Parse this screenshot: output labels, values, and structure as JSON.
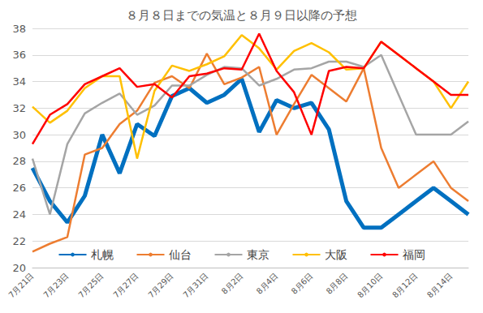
{
  "chart_data": {
    "type": "line",
    "title": "８月８日までの気温と８月９日以降の予想",
    "categories": [
      "7月21日",
      null,
      "7月23日",
      null,
      "7月25日",
      null,
      "7月27日",
      null,
      "7月29日",
      null,
      "7月31日",
      null,
      "8月2日",
      null,
      "8月4日",
      null,
      "8月6日",
      null,
      "8月8日",
      null,
      "8月10日",
      null,
      "8月12日",
      null,
      "8月14日",
      null
    ],
    "series": [
      {
        "name": "札幌",
        "color": "#0070C0",
        "line_style": "bold",
        "values": [
          27.5,
          25,
          23.4,
          25.4,
          30,
          27.1,
          30.8,
          29.9,
          32.9,
          33.5,
          32.4,
          33,
          34.2,
          30.2,
          32.6,
          32,
          32.4,
          30.4,
          25,
          23,
          23,
          24,
          25,
          26,
          25,
          24
        ]
      },
      {
        "name": "仙台",
        "color": "#ED7D31",
        "line_style": "solid",
        "values": [
          21.2,
          21.8,
          22.3,
          28.5,
          29,
          30.8,
          31.8,
          33.9,
          34.4,
          33.5,
          36.1,
          33.8,
          34.3,
          35.1,
          30,
          32.3,
          34.5,
          33.5,
          32.5,
          35,
          29,
          26,
          27,
          28,
          26,
          25
        ]
      },
      {
        "name": "東京",
        "color": "#A5A5A5",
        "line_style": "solid",
        "values": [
          28.2,
          24,
          29.3,
          31.6,
          32.4,
          33.1,
          31.5,
          32.2,
          33.7,
          33.7,
          34.5,
          35.1,
          35,
          33.7,
          34.2,
          34.9,
          35,
          35.5,
          35.5,
          35.1,
          36,
          33,
          30,
          30,
          30,
          31
        ]
      },
      {
        "name": "大阪",
        "color": "#FFC000",
        "line_style": "solid",
        "values": [
          32.1,
          30.9,
          31.8,
          33.5,
          34.4,
          34.4,
          28.2,
          33.3,
          35.2,
          34.8,
          35.3,
          35.9,
          37.5,
          36.5,
          34.9,
          36.3,
          36.9,
          36.2,
          34.9,
          35,
          37,
          36,
          35,
          34,
          32,
          34
        ]
      },
      {
        "name": "福岡",
        "color": "#FF0000",
        "line_style": "solid",
        "values": [
          29.3,
          31.5,
          32.3,
          33.8,
          34.4,
          35,
          33.6,
          33.8,
          32.8,
          34.4,
          34.6,
          35,
          34.9,
          37.6,
          34.8,
          33.2,
          30,
          34.8,
          35.1,
          35,
          37,
          36,
          35,
          34,
          33,
          33
        ]
      }
    ],
    "ylim": [
      20,
      38
    ],
    "yticks": [
      20,
      22,
      24,
      26,
      28,
      30,
      32,
      34,
      36,
      38
    ],
    "grid": true,
    "legend": "bottom"
  }
}
